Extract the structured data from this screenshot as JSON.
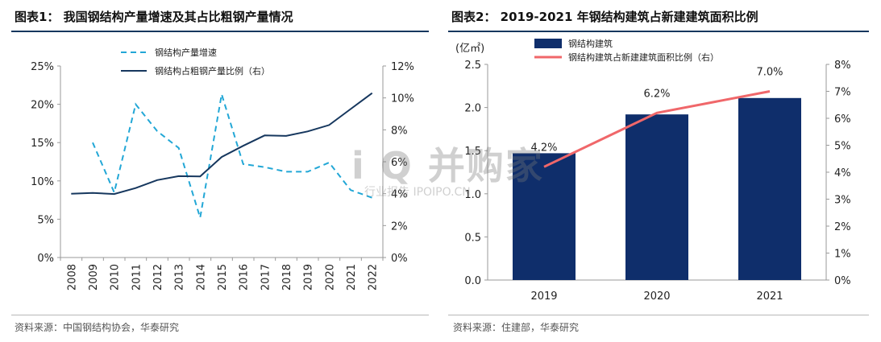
{
  "left": {
    "title": "图表1：  我国钢结构产量增速及其占比粗钢产量情况",
    "source": "资料来源：中国钢结构协会，华泰研究"
  },
  "right": {
    "title": "图表2：  2019-2021 年钢结构建筑占新建建筑面积比例",
    "source": "资料来源：住建部，华泰研究"
  },
  "watermark": {
    "main": "i Q 并购家",
    "sub": "行业报告 IPOIPO.CN"
  },
  "colors": {
    "dark_navy": "#16375e",
    "light_blue": "#22a7d6",
    "bar": "#0f2e6b",
    "salmon": "#f0676a"
  },
  "chart_data": [
    {
      "type": "line",
      "x": [
        "2008",
        "2009",
        "2010",
        "2011",
        "2012",
        "2013",
        "2014",
        "2015",
        "2016",
        "2017",
        "2018",
        "2019",
        "2020",
        "2021",
        "2022"
      ],
      "series": [
        {
          "name": "钢结构产量增速",
          "axis": "left",
          "style": "dashed",
          "values": [
            null,
            15.0,
            8.5,
            20.0,
            16.5,
            14.3,
            5.2,
            21.3,
            12.2,
            11.8,
            11.2,
            11.2,
            12.4,
            8.8,
            7.8
          ]
        },
        {
          "name": "钢结构占粗钢产量比例（右）",
          "axis": "right",
          "style": "solid",
          "values": [
            4.0,
            4.05,
            3.98,
            4.35,
            4.85,
            5.1,
            5.08,
            6.3,
            7.0,
            7.65,
            7.62,
            7.9,
            8.3,
            9.3,
            10.3
          ]
        }
      ],
      "y_left": {
        "min": 0,
        "max": 25,
        "step": 5,
        "ticks": [
          "0%",
          "5%",
          "10%",
          "15%",
          "20%",
          "25%"
        ]
      },
      "y_right": {
        "min": 0,
        "max": 12,
        "step": 2,
        "ticks": [
          "0%",
          "2%",
          "4%",
          "6%",
          "8%",
          "10%",
          "12%"
        ]
      },
      "legend": "top-center"
    },
    {
      "type": "bar",
      "categories": [
        "2019",
        "2020",
        "2021"
      ],
      "y_unit_label": "(亿㎡)",
      "series": [
        {
          "name": "钢结构建筑",
          "axis": "left",
          "kind": "bar",
          "values": [
            1.47,
            1.92,
            2.11
          ]
        },
        {
          "name": "钢结构建筑占新建建筑面积比例（右）",
          "axis": "right",
          "kind": "line",
          "values": [
            4.2,
            6.2,
            7.0
          ],
          "labels": [
            "4.2%",
            "6.2%",
            "7.0%"
          ]
        }
      ],
      "y_left": {
        "min": 0,
        "max": 2.5,
        "step": 0.5,
        "ticks": [
          "0.0",
          "0.5",
          "1.0",
          "1.5",
          "2.0",
          "2.5"
        ]
      },
      "y_right": {
        "min": 0,
        "max": 8,
        "step": 1,
        "ticks": [
          "0%",
          "1%",
          "2%",
          "3%",
          "4%",
          "5%",
          "6%",
          "7%",
          "8%"
        ]
      },
      "legend": "top-left"
    }
  ]
}
